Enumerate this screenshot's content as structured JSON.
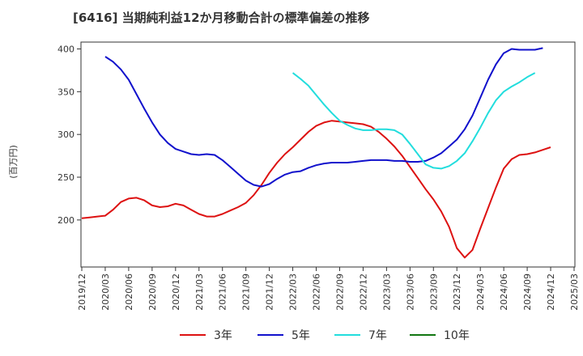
{
  "chart_data": {
    "type": "line",
    "title": "[6416]  当期純利益12か月移動合計の標準偏差の推移",
    "xlabel": "",
    "ylabel": "(百万円)",
    "ylim": [
      145,
      408
    ],
    "yticks": [
      200,
      250,
      300,
      350,
      400
    ],
    "xticks": [
      "2019/12",
      "2020/03",
      "2020/06",
      "2020/09",
      "2020/12",
      "2021/03",
      "2021/06",
      "2021/09",
      "2021/12",
      "2022/03",
      "2022/06",
      "2022/09",
      "2022/12",
      "2023/03",
      "2023/06",
      "2023/09",
      "2023/12",
      "2024/03",
      "2024/06",
      "2024/09",
      "2024/12",
      "2025/03"
    ],
    "x_start": "2019/12",
    "grid": false,
    "legend_position": "bottom",
    "series": [
      {
        "name": "3年",
        "color": "#dd1111",
        "start": "2019/12",
        "values": [
          202,
          203,
          204,
          205,
          212,
          221,
          225,
          226,
          223,
          217,
          215,
          216,
          219,
          217,
          212,
          207,
          204,
          204,
          207,
          211,
          215,
          220,
          229,
          241,
          255,
          267,
          277,
          285,
          294,
          303,
          310,
          314,
          316,
          315,
          314,
          313,
          312,
          309,
          303,
          295,
          286,
          275,
          262,
          249,
          236,
          224,
          210,
          192,
          167,
          156,
          165,
          190,
          214,
          238,
          260,
          271,
          276,
          277,
          279,
          282,
          285
        ]
      },
      {
        "name": "5年",
        "color": "#1111cc",
        "start": "2020/03",
        "values": [
          391,
          385,
          376,
          364,
          347,
          330,
          314,
          300,
          290,
          283,
          280,
          277,
          276,
          277,
          276,
          270,
          262,
          254,
          246,
          241,
          239,
          242,
          248,
          253,
          256,
          257,
          261,
          264,
          266,
          267,
          267,
          267,
          268,
          269,
          270,
          270,
          270,
          269,
          269,
          268,
          268,
          269,
          273,
          278,
          286,
          294,
          306,
          322,
          343,
          364,
          382,
          395,
          400,
          399,
          399,
          399,
          401
        ]
      },
      {
        "name": "7年",
        "color": "#22dddd",
        "start": "2022/03",
        "values": [
          372,
          365,
          357,
          346,
          335,
          325,
          316,
          311,
          307,
          305,
          305,
          306,
          306,
          305,
          300,
          289,
          277,
          265,
          261,
          260,
          263,
          269,
          278,
          292,
          308,
          325,
          340,
          350,
          356,
          361,
          367,
          372
        ]
      },
      {
        "name": "10年",
        "color": "#117711",
        "start": "2019/12",
        "values": []
      }
    ]
  }
}
